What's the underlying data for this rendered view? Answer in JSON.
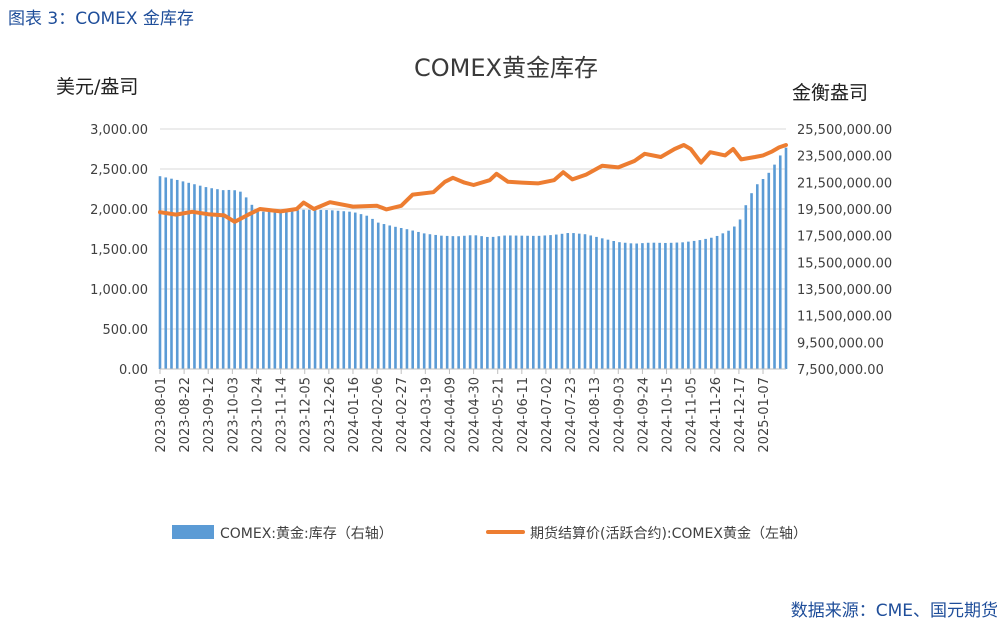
{
  "caption": "图表 3：COMEX 金库存",
  "source": "数据来源：CME、国元期货",
  "colors": {
    "bars": "#5b9bd5",
    "line": "#ed7d31",
    "text_blue": "#1f4e9a"
  },
  "chart_data": {
    "type": "bar+line",
    "title": "COMEX黄金库存",
    "y_left_label": "美元/盎司",
    "y_right_label": "金衡盎司",
    "y_left_range": [
      0,
      3000
    ],
    "y_right_range": [
      7500000,
      25500000
    ],
    "y_left_ticks": [
      "0.00",
      "500.00",
      "1,000.00",
      "1,500.00",
      "2,000.00",
      "2,500.00",
      "3,000.00"
    ],
    "y_right_ticks": [
      "7,500,000.00",
      "9,500,000.00",
      "11,500,000.00",
      "13,500,000.00",
      "15,500,000.00",
      "17,500,000.00",
      "19,500,000.00",
      "21,500,000.00",
      "23,500,000.00",
      "25,500,000.00"
    ],
    "x_ticks": [
      "2023-08-01",
      "2023-08-22",
      "2023-09-12",
      "2023-10-03",
      "2023-10-24",
      "2023-11-14",
      "2023-12-05",
      "2023-12-26",
      "2024-01-16",
      "2024-02-06",
      "2024-02-27",
      "2024-03-19",
      "2024-04-09",
      "2024-04-30",
      "2024-05-21",
      "2024-06-11",
      "2024-07-02",
      "2024-07-23",
      "2024-08-13",
      "2024-09-03",
      "2024-09-24",
      "2024-10-15",
      "2024-11-05",
      "2024-11-26",
      "2024-12-17",
      "2025-01-07"
    ],
    "legend_position": "bottom",
    "series": [
      {
        "name": "COMEX:黄金:库存（右轴）",
        "type": "bar",
        "axis": "right",
        "points": [
          [
            "2023-08-01",
            21960000
          ],
          [
            "2023-08-15",
            21700000
          ],
          [
            "2023-08-29",
            21400000
          ],
          [
            "2023-09-12",
            21100000
          ],
          [
            "2023-09-26",
            20900000
          ],
          [
            "2023-10-03",
            20950000
          ],
          [
            "2023-10-10",
            20800000
          ],
          [
            "2023-10-17",
            20200000
          ],
          [
            "2023-10-24",
            19300000
          ],
          [
            "2023-11-14",
            19300000
          ],
          [
            "2023-12-05",
            19450000
          ],
          [
            "2023-12-26",
            19420000
          ],
          [
            "2024-01-16",
            19280000
          ],
          [
            "2024-01-30",
            18950000
          ],
          [
            "2024-02-06",
            18500000
          ],
          [
            "2024-02-20",
            18200000
          ],
          [
            "2024-03-05",
            17950000
          ],
          [
            "2024-03-19",
            17650000
          ],
          [
            "2024-04-02",
            17500000
          ],
          [
            "2024-04-16",
            17450000
          ],
          [
            "2024-04-30",
            17550000
          ],
          [
            "2024-05-14",
            17380000
          ],
          [
            "2024-05-28",
            17520000
          ],
          [
            "2024-06-11",
            17500000
          ],
          [
            "2024-06-25",
            17480000
          ],
          [
            "2024-07-09",
            17560000
          ],
          [
            "2024-07-23",
            17720000
          ],
          [
            "2024-08-06",
            17600000
          ],
          [
            "2024-08-20",
            17300000
          ],
          [
            "2024-09-03",
            17020000
          ],
          [
            "2024-09-17",
            16900000
          ],
          [
            "2024-10-01",
            16980000
          ],
          [
            "2024-10-15",
            16950000
          ],
          [
            "2024-10-29",
            17000000
          ],
          [
            "2024-11-12",
            17150000
          ],
          [
            "2024-11-26",
            17400000
          ],
          [
            "2024-12-10",
            17950000
          ],
          [
            "2024-12-17",
            18500000
          ],
          [
            "2024-12-24",
            20000000
          ],
          [
            "2024-12-31",
            21200000
          ],
          [
            "2025-01-07",
            21750000
          ],
          [
            "2025-01-14",
            22400000
          ],
          [
            "2025-01-21",
            23400000
          ],
          [
            "2025-01-27",
            24100000
          ]
        ]
      },
      {
        "name": "期货结算价(活跃合约):COMEX黄金（左轴）",
        "type": "line",
        "axis": "left",
        "points": [
          [
            "2023-08-01",
            1960
          ],
          [
            "2023-08-15",
            1930
          ],
          [
            "2023-08-29",
            1965
          ],
          [
            "2023-09-12",
            1935
          ],
          [
            "2023-09-26",
            1920
          ],
          [
            "2023-10-05",
            1840
          ],
          [
            "2023-10-17",
            1930
          ],
          [
            "2023-10-27",
            2000
          ],
          [
            "2023-11-14",
            1970
          ],
          [
            "2023-11-28",
            2000
          ],
          [
            "2023-12-04",
            2080
          ],
          [
            "2023-12-13",
            2000
          ],
          [
            "2023-12-27",
            2085
          ],
          [
            "2024-01-16",
            2030
          ],
          [
            "2024-02-06",
            2040
          ],
          [
            "2024-02-14",
            1995
          ],
          [
            "2024-02-27",
            2040
          ],
          [
            "2024-03-08",
            2180
          ],
          [
            "2024-03-26",
            2210
          ],
          [
            "2024-04-05",
            2340
          ],
          [
            "2024-04-12",
            2390
          ],
          [
            "2024-04-22",
            2330
          ],
          [
            "2024-04-30",
            2300
          ],
          [
            "2024-05-14",
            2360
          ],
          [
            "2024-05-20",
            2440
          ],
          [
            "2024-05-30",
            2340
          ],
          [
            "2024-06-11",
            2330
          ],
          [
            "2024-06-25",
            2320
          ],
          [
            "2024-07-09",
            2360
          ],
          [
            "2024-07-17",
            2460
          ],
          [
            "2024-07-25",
            2370
          ],
          [
            "2024-08-06",
            2430
          ],
          [
            "2024-08-20",
            2540
          ],
          [
            "2024-09-03",
            2520
          ],
          [
            "2024-09-17",
            2600
          ],
          [
            "2024-09-26",
            2690
          ],
          [
            "2024-10-10",
            2650
          ],
          [
            "2024-10-22",
            2750
          ],
          [
            "2024-10-30",
            2800
          ],
          [
            "2024-11-05",
            2750
          ],
          [
            "2024-11-14",
            2580
          ],
          [
            "2024-11-22",
            2710
          ],
          [
            "2024-12-05",
            2670
          ],
          [
            "2024-12-12",
            2750
          ],
          [
            "2024-12-19",
            2620
          ],
          [
            "2024-12-31",
            2650
          ],
          [
            "2025-01-07",
            2670
          ],
          [
            "2025-01-15",
            2720
          ],
          [
            "2025-01-21",
            2770
          ],
          [
            "2025-01-27",
            2800
          ]
        ]
      }
    ]
  }
}
